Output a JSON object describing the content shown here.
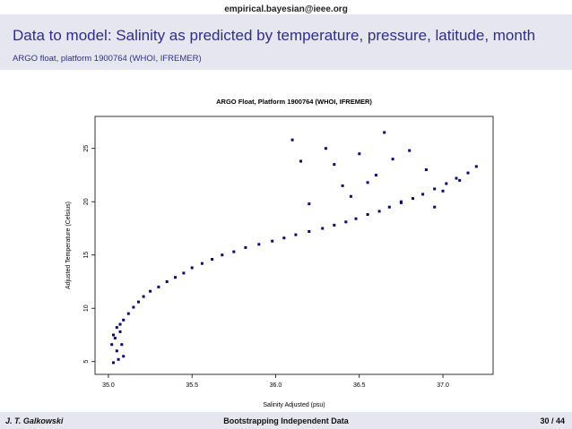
{
  "header": {
    "author_email": "empirical.bayesian@ieee.org",
    "title": "Data to model: Salinity as predicted by temperature, pressure, latitude, month",
    "subtitle": "ARGO float, platform 1900764 (WHOI, IFREMER)"
  },
  "footer": {
    "author": "J. T. Galkowski",
    "talk_title": "Bootstrapping Independent Data",
    "page": "30 / 44"
  },
  "colors": {
    "header_bg": "#e6e6f0",
    "title_color": "#2e2e8a",
    "point_color": "#0a0a6e"
  },
  "chart_data": {
    "type": "scatter",
    "title": "ARGO Float, Platform 1900764 (WHOI, IFREMER)",
    "xlabel": "Salinity Adjusted (psu)",
    "ylabel": "Adjusted Temperature (Celsius)",
    "xlim": [
      34.92,
      37.3
    ],
    "ylim": [
      3.8,
      28.0
    ],
    "x_ticks": [
      "35.0",
      "35.5",
      "36.0",
      "36.5",
      "37.0"
    ],
    "y_ticks": [
      "5",
      "10",
      "15",
      "20",
      "25"
    ],
    "x_tick_values": [
      35.0,
      35.5,
      36.0,
      36.5,
      37.0
    ],
    "y_tick_values": [
      5,
      10,
      15,
      20,
      25
    ],
    "grid": false,
    "legend": "none",
    "series": [
      {
        "x": [
          35.03,
          35.06,
          35.02,
          35.04,
          35.05,
          35.09,
          35.08,
          35.07,
          35.03,
          35.05,
          35.07,
          35.09,
          35.12,
          35.15,
          35.18,
          35.21,
          35.25,
          35.3,
          35.35,
          35.4,
          35.45,
          35.5,
          35.56,
          35.62,
          35.68,
          35.75,
          35.82,
          35.9,
          35.98,
          36.05,
          36.12,
          36.2,
          36.28,
          36.35,
          36.42,
          36.48,
          36.55,
          36.62,
          36.68,
          36.75,
          36.82,
          36.88,
          36.95,
          37.02,
          37.08,
          37.15,
          37.2,
          36.6,
          36.5,
          36.3,
          36.1,
          36.4,
          36.7,
          36.9,
          37.0,
          36.2,
          36.45,
          36.8,
          37.1,
          36.35,
          36.55,
          36.75,
          36.95,
          36.15,
          36.65
        ],
        "y": [
          4.9,
          5.2,
          6.6,
          7.2,
          6.0,
          5.5,
          6.6,
          7.8,
          7.5,
          8.2,
          8.5,
          8.9,
          9.5,
          10.1,
          10.6,
          11.1,
          11.6,
          12.0,
          12.5,
          12.9,
          13.3,
          13.8,
          14.2,
          14.6,
          15.0,
          15.3,
          15.7,
          16.0,
          16.3,
          16.6,
          16.9,
          17.2,
          17.5,
          17.8,
          18.1,
          18.4,
          18.8,
          19.1,
          19.5,
          19.9,
          20.3,
          20.7,
          21.2,
          21.7,
          22.2,
          22.7,
          23.3,
          22.5,
          24.5,
          25.0,
          25.8,
          21.5,
          24.0,
          23.0,
          21.0,
          19.8,
          20.5,
          24.8,
          22.0,
          23.5,
          21.8,
          20.0,
          19.5,
          23.8,
          26.5
        ]
      }
    ]
  }
}
